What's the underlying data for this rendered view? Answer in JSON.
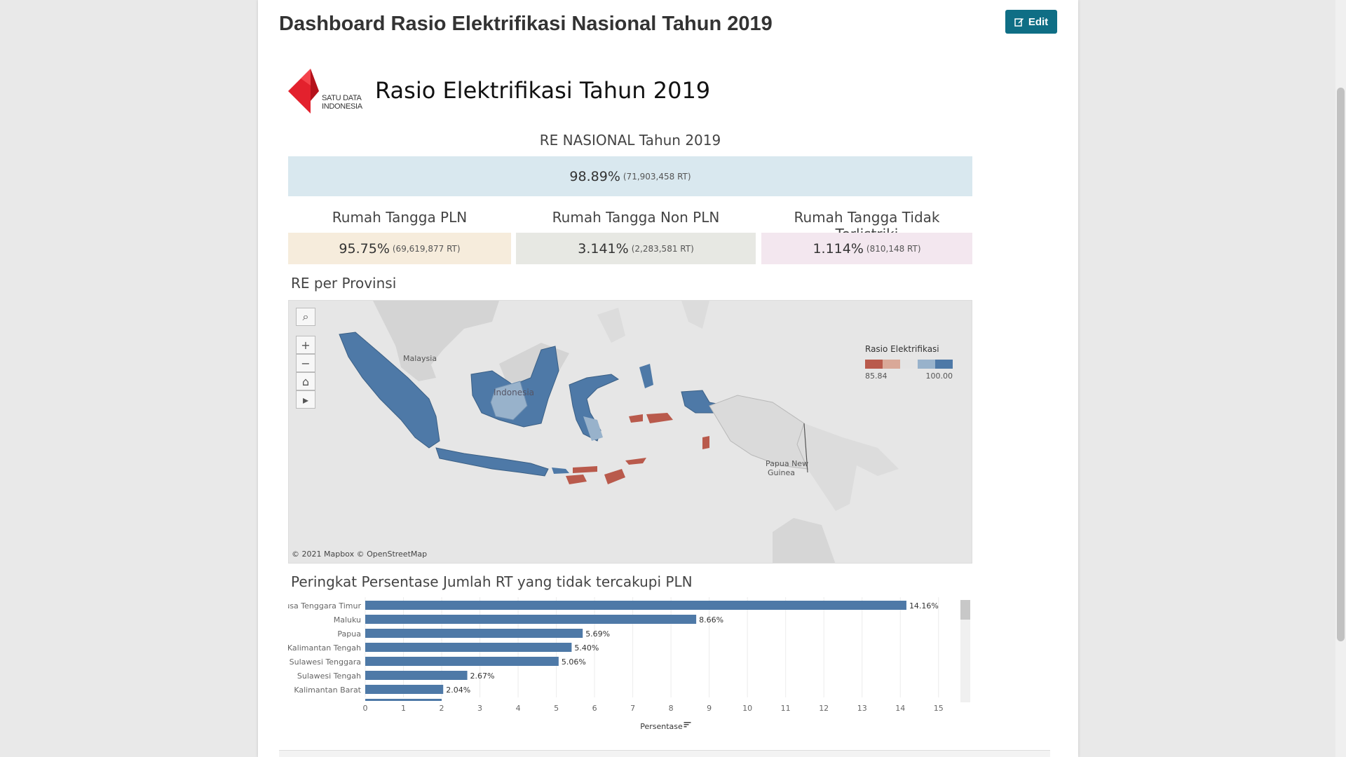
{
  "header": {
    "title": "Dashboard Rasio Elektrifikasi Nasional Tahun 2019",
    "edit_label": "Edit"
  },
  "dashboard": {
    "logo_text_line1": "SATU DATA",
    "logo_text_line2": "INDONESIA",
    "title": "Rasio Elektrifikasi Tahun 2019",
    "national": {
      "label": "RE NASIONAL Tahun 2019",
      "value": "98.89%",
      "detail": "(71,903,458 RT)",
      "color": "#d9e8ef"
    },
    "kpis": [
      {
        "label": "Rumah Tangga PLN",
        "value": "95.75%",
        "detail": "(69,619,877 RT)",
        "color": "#f6ecdc"
      },
      {
        "label": "Rumah Tangga Non PLN",
        "value": "3.141%",
        "detail": "(2,283,581 RT)",
        "color": "#e7e8e3"
      },
      {
        "label": "Rumah Tangga Tidak Terlistriki",
        "value": "1.114%",
        "detail": "(810,148 RT)",
        "color": "#f3e7ef"
      }
    ],
    "map": {
      "title": "RE per Provinsi",
      "labels": {
        "malaysia": "Malaysia",
        "indonesia": "Indonesia",
        "png_line1": "Papua New",
        "png_line2": "Guinea"
      },
      "legend_title": "Rasio Elektrifikasi",
      "legend_min": "85.84",
      "legend_max": "100.00",
      "legend_colors": [
        "#b95a4c",
        "#d9a898",
        "#e4e4e4",
        "#98b2cb",
        "#4e79a7"
      ],
      "attribution": "© 2021 Mapbox  © OpenStreetMap",
      "tools": [
        "search-icon",
        "zoom-in-icon",
        "zoom-out-icon",
        "home-icon",
        "play-icon"
      ]
    },
    "chart_title": "Peringkat Persentase Jumlah RT yang tidak tercakupi PLN"
  },
  "chart_data": {
    "type": "bar",
    "orientation": "horizontal",
    "categories": [
      "Nusa Tenggara Timur",
      "Maluku",
      "Papua",
      "Kalimantan Tengah",
      "Sulawesi Tenggara",
      "Sulawesi Tengah",
      "Kalimantan Barat"
    ],
    "values": [
      14.16,
      8.66,
      5.69,
      5.4,
      5.06,
      2.67,
      2.04
    ],
    "value_labels": [
      "14.16%",
      "8.66%",
      "5.69%",
      "5.40%",
      "5.06%",
      "2.67%",
      "2.04%"
    ],
    "partial_next_value": 2.0,
    "xlabel": "Persentase",
    "xlim": [
      0,
      15.5
    ],
    "xticks": [
      0,
      1,
      2,
      3,
      4,
      5,
      6,
      7,
      8,
      9,
      10,
      11,
      12,
      13,
      14,
      15
    ],
    "bar_color": "#4e79a7",
    "grid": true
  }
}
